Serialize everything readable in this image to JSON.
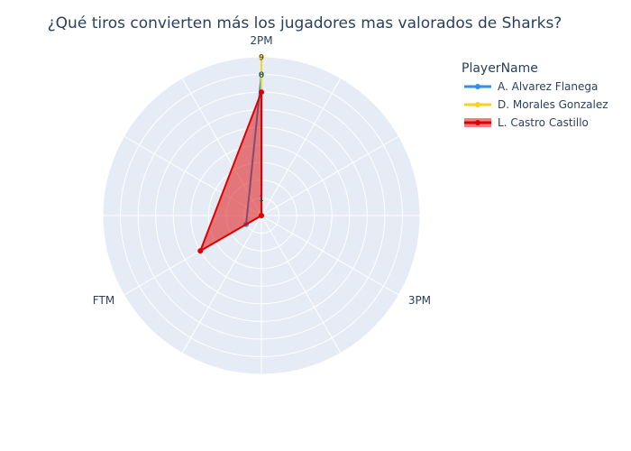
{
  "chart_data": {
    "type": "radar",
    "title": "¿Qué tiros convierten más los jugadores mas valorados de Sharks?",
    "axes": [
      "2PM",
      "3PM",
      "FTM"
    ],
    "radial_range": [
      0,
      9
    ],
    "radial_ticks": [
      1,
      8,
      9
    ],
    "grid": true,
    "legend": {
      "title": "PlayerName",
      "placement": "top-right"
    },
    "series": [
      {
        "name": "A. Alvarez Flanega",
        "values": [
          8,
          0,
          1
        ],
        "color": "#2E91E5",
        "fill": false
      },
      {
        "name": "D. Morales Gonzalez",
        "values": [
          9,
          0,
          0
        ],
        "color": "#F7D21E",
        "fill": false
      },
      {
        "name": "L. Castro Castillo",
        "values": [
          7,
          0,
          4
        ],
        "color": "#E00000",
        "fill": true
      }
    ]
  }
}
